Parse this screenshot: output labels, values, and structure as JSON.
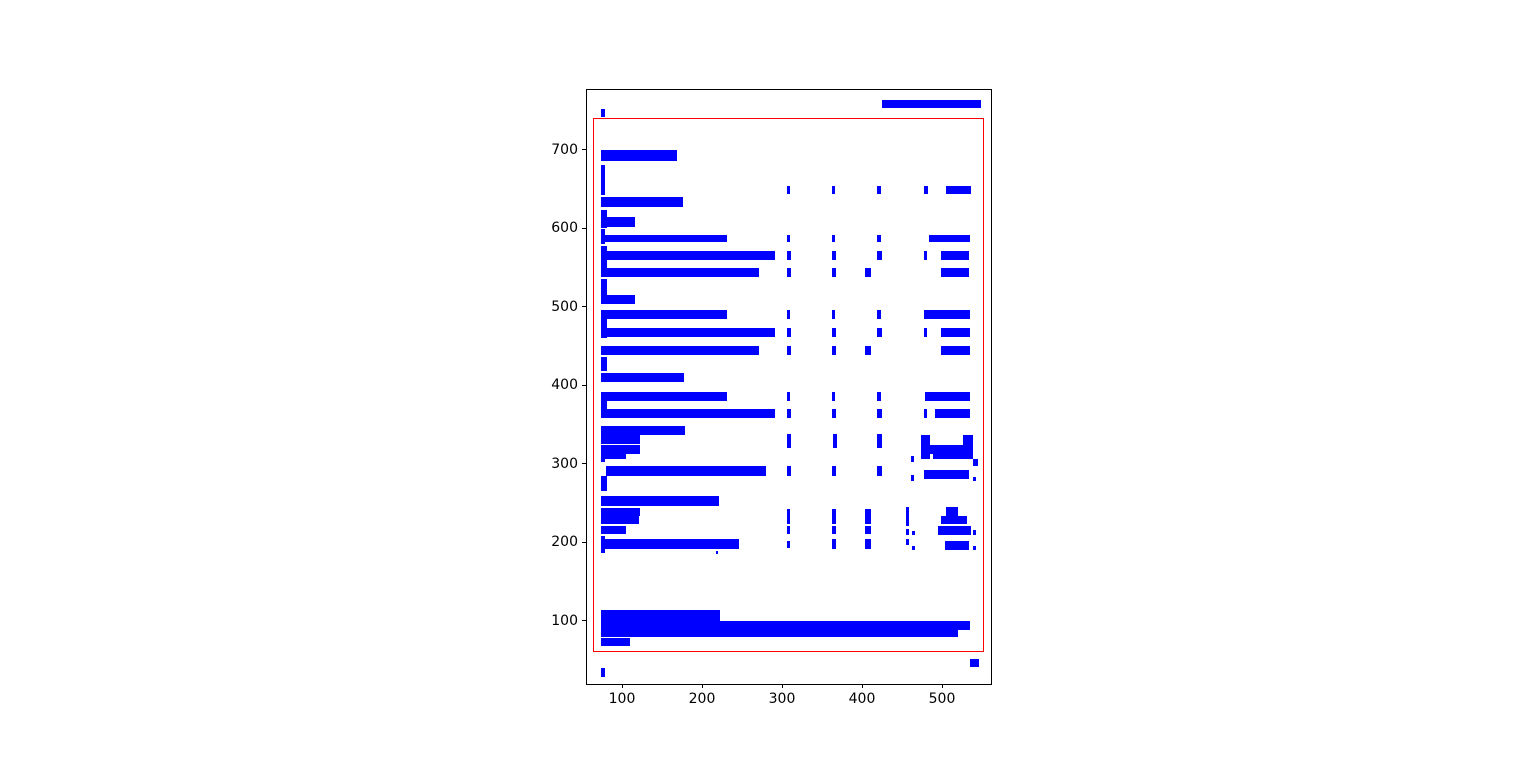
{
  "figure": {
    "background": "#ffffff",
    "bar_color": "#0000ff",
    "boundary_color": "#ff0000",
    "axis_color": "#000000"
  },
  "chart_data": {
    "type": "rectangles",
    "description": "Layout plot of blue bounding-box rectangles (document word/line boxes) with a red page-boundary rectangle",
    "title": "",
    "xlabel": "",
    "ylabel": "",
    "grid": false,
    "legend": null,
    "xlim": [
      55,
      560
    ],
    "ylim": [
      19.7,
      776.8
    ],
    "x_tick_values": [
      100,
      200,
      300,
      400,
      500
    ],
    "x_tick_labels": [
      "100",
      "200",
      "300",
      "400",
      "500"
    ],
    "y_tick_values": [
      100,
      200,
      300,
      400,
      500,
      600,
      700
    ],
    "y_tick_labels": [
      "100",
      "200",
      "300",
      "400",
      "500",
      "600",
      "700"
    ],
    "rect_format": "[x_left, y_bottom, width, height] in data units",
    "red_box": [
      63,
      60,
      488,
      681
    ],
    "rects": [
      [
        424,
        754,
        123.5,
        10
      ],
      [
        73,
        742,
        4.5,
        11
      ],
      [
        73,
        686,
        95,
        14
      ],
      [
        73,
        643,
        4.5,
        38
      ],
      [
        305,
        644,
        4,
        10
      ],
      [
        361,
        644,
        4,
        10
      ],
      [
        417,
        644,
        5.5,
        10
      ],
      [
        476,
        644,
        5,
        10
      ],
      [
        504,
        644,
        31,
        10
      ],
      [
        73,
        627,
        102,
        13
      ],
      [
        73,
        601,
        7,
        23
      ],
      [
        73,
        602,
        42,
        13
      ],
      [
        73,
        581,
        4.5,
        19
      ],
      [
        73,
        583,
        157,
        9
      ],
      [
        305,
        583,
        4,
        9
      ],
      [
        361,
        583,
        4,
        9
      ],
      [
        417,
        583,
        5.5,
        9
      ],
      [
        483,
        583,
        51,
        9
      ],
      [
        73,
        548,
        7,
        30
      ],
      [
        73,
        560,
        217,
        12
      ],
      [
        305,
        560,
        5,
        12
      ],
      [
        361,
        560,
        5,
        12
      ],
      [
        417,
        560,
        6.5,
        12
      ],
      [
        476,
        560,
        4,
        12
      ],
      [
        497,
        560,
        36,
        12
      ],
      [
        73,
        538,
        197,
        12
      ],
      [
        305,
        538,
        5,
        12
      ],
      [
        361,
        538,
        5,
        12
      ],
      [
        402,
        538,
        8,
        12
      ],
      [
        497,
        538,
        36,
        12
      ],
      [
        73,
        515,
        7,
        21
      ],
      [
        73,
        504,
        42,
        11
      ],
      [
        73,
        485,
        157,
        11
      ],
      [
        305,
        485,
        4,
        11
      ],
      [
        361,
        485,
        4,
        11
      ],
      [
        417,
        485,
        5.5,
        11
      ],
      [
        476,
        485,
        58,
        11
      ],
      [
        73,
        461,
        7,
        24
      ],
      [
        73,
        462,
        217,
        12
      ],
      [
        305,
        462,
        5,
        12
      ],
      [
        361,
        462,
        5,
        12
      ],
      [
        417,
        462,
        6.5,
        12
      ],
      [
        476,
        462,
        4,
        12
      ],
      [
        497,
        462,
        37,
        12
      ],
      [
        73,
        439,
        197,
        12
      ],
      [
        305,
        439,
        5,
        12
      ],
      [
        361,
        439,
        5,
        12
      ],
      [
        402,
        439,
        8,
        12
      ],
      [
        497,
        439,
        37,
        12
      ],
      [
        73,
        419,
        7,
        17
      ],
      [
        73,
        405,
        103,
        11
      ],
      [
        73,
        368,
        7,
        24
      ],
      [
        73,
        380,
        157,
        12
      ],
      [
        305,
        380,
        4,
        12
      ],
      [
        361,
        380,
        4,
        12
      ],
      [
        417,
        380,
        5.5,
        12
      ],
      [
        477,
        380,
        57,
        12
      ],
      [
        73,
        359,
        217,
        11
      ],
      [
        305,
        359,
        5,
        11
      ],
      [
        361,
        359,
        5,
        11
      ],
      [
        417,
        359,
        6.5,
        11
      ],
      [
        476,
        359,
        4,
        11
      ],
      [
        490,
        359,
        44,
        11
      ],
      [
        73,
        337,
        104,
        12
      ],
      [
        73,
        326,
        48,
        11
      ],
      [
        305,
        321,
        5,
        17
      ],
      [
        362,
        321,
        5,
        17
      ],
      [
        417,
        321,
        6.5,
        17
      ],
      [
        472,
        324,
        12,
        13
      ],
      [
        525,
        324,
        13,
        13
      ],
      [
        73,
        313,
        48,
        11
      ],
      [
        472,
        313,
        66,
        11
      ],
      [
        73,
        307,
        31,
        6
      ],
      [
        472,
        307,
        12,
        6
      ],
      [
        488,
        307,
        50,
        6
      ],
      [
        73,
        302,
        4.5,
        5
      ],
      [
        460,
        302,
        4,
        8
      ],
      [
        538,
        298,
        6,
        9
      ],
      [
        79,
        285,
        200,
        12
      ],
      [
        73,
        266,
        7,
        19
      ],
      [
        305,
        285,
        5,
        12
      ],
      [
        361,
        285,
        5,
        12
      ],
      [
        417,
        285,
        6.5,
        12
      ],
      [
        460,
        279,
        4,
        7
      ],
      [
        476,
        281,
        57,
        12
      ],
      [
        537,
        278,
        4,
        5
      ],
      [
        73,
        247,
        147,
        12
      ],
      [
        73,
        234,
        48,
        10
      ],
      [
        73,
        224,
        47,
        10
      ],
      [
        305,
        224,
        4,
        19
      ],
      [
        361,
        224,
        5,
        19
      ],
      [
        402,
        224,
        8,
        19
      ],
      [
        454,
        221,
        4,
        24
      ],
      [
        504,
        233,
        15,
        12
      ],
      [
        497,
        224,
        33,
        10
      ],
      [
        73,
        211,
        31,
        10
      ],
      [
        305,
        211,
        4,
        10
      ],
      [
        361,
        211,
        5,
        10
      ],
      [
        402,
        211,
        8,
        10
      ],
      [
        454,
        210,
        4,
        7
      ],
      [
        461,
        210,
        4,
        5
      ],
      [
        494,
        210,
        41,
        11
      ],
      [
        537,
        210,
        4,
        6
      ],
      [
        73,
        187,
        4.5,
        22
      ],
      [
        77,
        192,
        168,
        12
      ],
      [
        305,
        193,
        4,
        9
      ],
      [
        361,
        192,
        5,
        12
      ],
      [
        402,
        192,
        8,
        12
      ],
      [
        454,
        197,
        4,
        7
      ],
      [
        461,
        191,
        4,
        5
      ],
      [
        502,
        191,
        31,
        11
      ],
      [
        537,
        191,
        4,
        5
      ],
      [
        216,
        185,
        3,
        4
      ],
      [
        73,
        100,
        148,
        14
      ],
      [
        73,
        88,
        461,
        12
      ],
      [
        73,
        80,
        446,
        8
      ],
      [
        73,
        68,
        36,
        10
      ],
      [
        534,
        41,
        11,
        11
      ],
      [
        72,
        28,
        5,
        12
      ]
    ]
  }
}
